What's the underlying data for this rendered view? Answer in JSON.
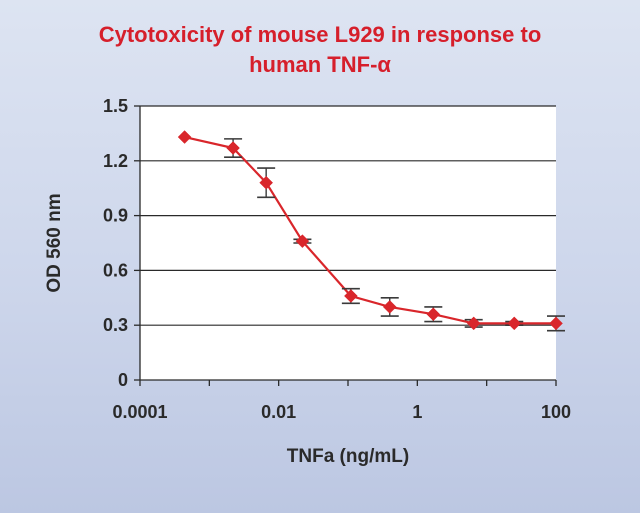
{
  "chart_data": {
    "type": "line",
    "title_line1": "Cytotoxicity of mouse L929 in response to",
    "title_line2": "human TNF-α",
    "xlabel": "TNFa (ng/mL)",
    "ylabel": "OD 560 nm",
    "x_scale": "log10",
    "xlim": [
      0.0001,
      100
    ],
    "ylim": [
      0,
      1.5
    ],
    "x_ticks": [
      0.0001,
      0.01,
      1,
      100
    ],
    "x_tick_labels": [
      "0.0001",
      "0.01",
      "1",
      "100"
    ],
    "y_ticks": [
      0,
      0.3,
      0.6,
      0.9,
      1.2,
      1.5
    ],
    "y_tick_labels": [
      "0",
      "0.3",
      "0.6",
      "0.9",
      "1.2",
      "1.5"
    ],
    "grid": "horizontal",
    "series": [
      {
        "color": "#d9262b",
        "marker": "diamond",
        "x": [
          0.00044,
          0.0022,
          0.0066,
          0.022,
          0.11,
          0.4,
          1.7,
          6.5,
          25,
          100
        ],
        "y": [
          1.33,
          1.27,
          1.08,
          0.76,
          0.46,
          0.4,
          0.36,
          0.31,
          0.31,
          0.31
        ],
        "error": [
          0,
          0.05,
          0.08,
          0.01,
          0.04,
          0.05,
          0.04,
          0.02,
          0.01,
          0.04
        ]
      }
    ]
  },
  "colors": {
    "title": "#d61f2b",
    "series": "#d9262b",
    "axis": "#2a2a2a",
    "grid": "#2a2a2a",
    "plot_background": "#ffffff"
  }
}
